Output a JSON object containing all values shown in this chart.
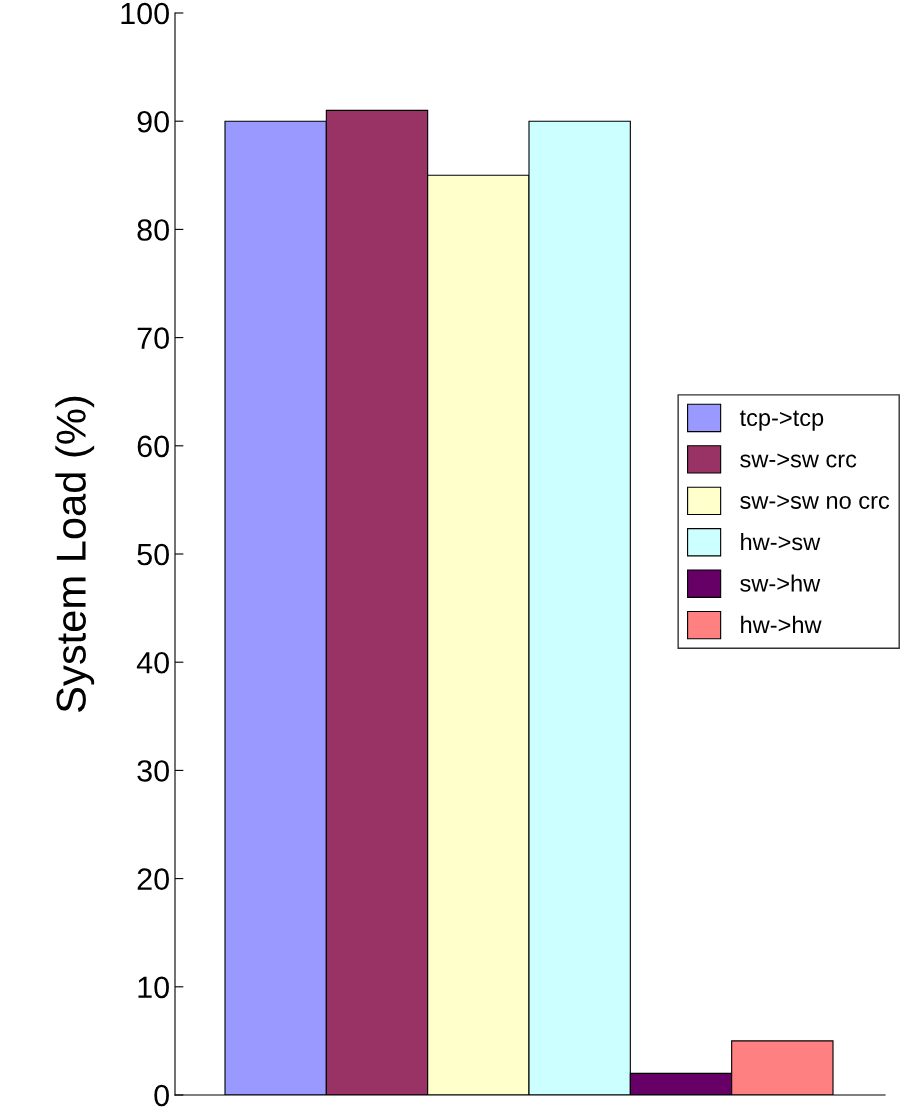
{
  "chart_data": {
    "type": "bar",
    "ylabel": "System Load (%)",
    "categories": [
      null
    ],
    "series": [
      {
        "name": "tcp->tcp",
        "color": "#9999ff",
        "values": [
          90
        ]
      },
      {
        "name": "sw->sw crc",
        "color": "#993366",
        "values": [
          91
        ]
      },
      {
        "name": "sw->sw no crc",
        "color": "#ffffcc",
        "values": [
          85
        ]
      },
      {
        "name": "hw->sw",
        "color": "#ccffff",
        "values": [
          90
        ]
      },
      {
        "name": "sw->hw",
        "color": "#660066",
        "values": [
          2
        ]
      },
      {
        "name": "hw->hw",
        "color": "#ff8080",
        "values": [
          5
        ]
      }
    ],
    "ylim": [
      0,
      100
    ],
    "yticks": [
      0,
      10,
      20,
      30,
      40,
      50,
      60,
      70,
      80,
      90,
      100
    ],
    "grid": false,
    "legend": "right"
  }
}
